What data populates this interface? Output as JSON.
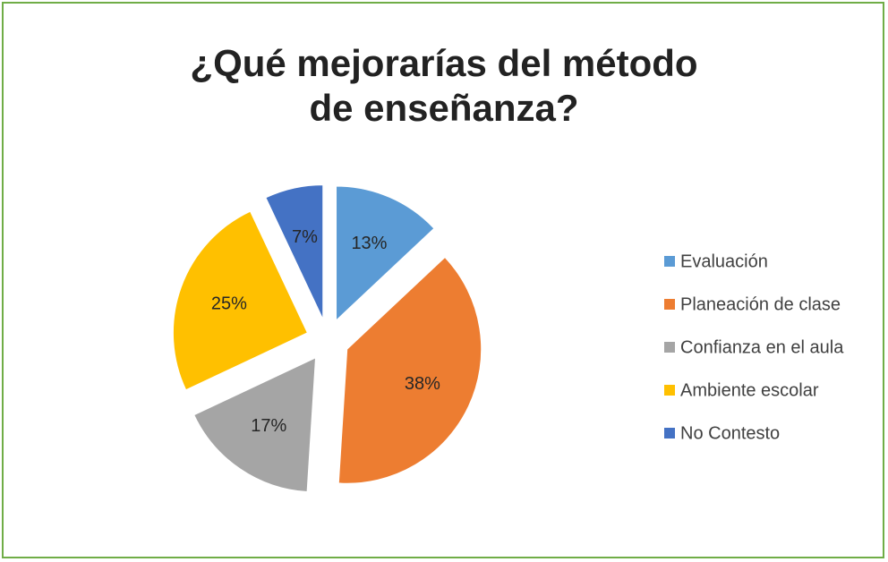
{
  "chart_data": {
    "type": "pie",
    "title": "¿Qué mejorarías del método de enseñanza?",
    "categories": [
      "Evaluación",
      "Planeación de clase",
      "Confianza en el aula",
      "Ambiente escolar",
      "No Contesto"
    ],
    "values": [
      13,
      38,
      17,
      25,
      7
    ],
    "value_labels": [
      "13%",
      "38%",
      "17%",
      "25%",
      "7%"
    ],
    "colors": [
      "#5b9bd5",
      "#ed7d31",
      "#a5a5a5",
      "#ffc000",
      "#4472c4"
    ],
    "legend": "right"
  }
}
